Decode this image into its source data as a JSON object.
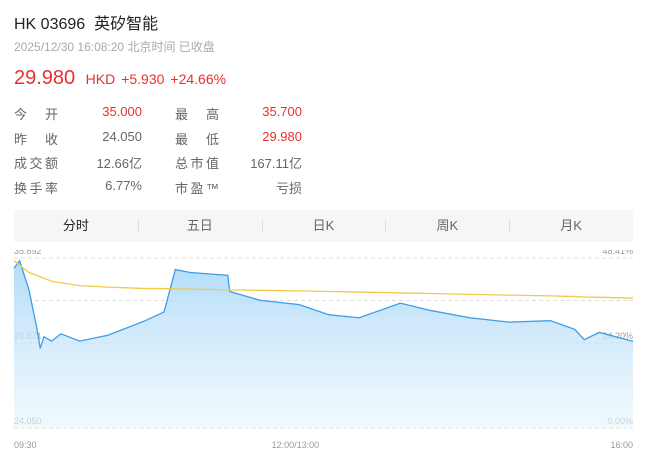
{
  "header": {
    "symbol": "HK 03696",
    "name": "英矽智能",
    "timestamp": "2025/12/30 16:08:20 北京时间 已收盘"
  },
  "quote": {
    "price": "29.980",
    "currency": "HKD",
    "change": "+5.930",
    "change_pct": "+24.66%"
  },
  "stats": {
    "rows": [
      [
        "今开",
        "35.000",
        "最高",
        "35.700"
      ],
      [
        "昨收",
        "24.050",
        "最低",
        "29.980"
      ],
      [
        "成交额",
        "12.66亿",
        "总市值",
        "167.11亿"
      ],
      [
        "换手率",
        "6.77%",
        "市盈™",
        "亏损"
      ]
    ]
  },
  "tabs": [
    "分时",
    "五日",
    "日K",
    "周K",
    "月K"
  ],
  "chart_data": {
    "type": "line",
    "x": [
      0,
      3,
      8,
      12,
      14,
      16,
      20,
      25,
      35,
      50,
      60,
      70,
      80,
      86,
      94,
      114,
      115,
      131,
      152,
      168,
      184,
      206,
      222,
      243,
      264,
      286,
      299,
      304,
      312,
      330
    ],
    "series": [
      {
        "color": "#3d9de6",
        "values": [
          35.0,
          35.5,
          33.5,
          31.0,
          29.5,
          30.3,
          30.0,
          30.5,
          30.0,
          30.4,
          30.9,
          31.4,
          32.0,
          34.9,
          34.7,
          34.5,
          33.4,
          32.8,
          32.5,
          31.8,
          31.6,
          32.6,
          32.1,
          31.6,
          31.3,
          31.4,
          30.8,
          30.1,
          30.6,
          29.98
        ]
      },
      {
        "color": "#f2c94c",
        "values": [
          35.5,
          35.2,
          34.7,
          34.5,
          34.4,
          34.3,
          34.1,
          34.0,
          33.8,
          33.7,
          33.65,
          33.6,
          33.6,
          33.58,
          33.56,
          33.52,
          33.51,
          33.48,
          33.44,
          33.4,
          33.36,
          33.3,
          33.26,
          33.2,
          33.15,
          33.1,
          33.05,
          33.02,
          33.0,
          32.95
        ]
      }
    ],
    "xlim": [
      0,
      330
    ],
    "xticks": [
      {
        "value": 0,
        "label": "09:30"
      },
      {
        "value": 150,
        "label": "12:00/13:00"
      },
      {
        "value": 330,
        "label": "16:00"
      }
    ],
    "ylim": [
      24.05,
      35.692
    ],
    "yticks": [
      35.692,
      29.871,
      {
        "value": 24.05,
        "label": "24.050"
      }
    ],
    "minor_grid": [
      32.781,
      26.961
    ],
    "y2lim": [
      0,
      48.41
    ],
    "y2ticks": [
      {
        "value": 48.41,
        "label": "48.41%"
      },
      {
        "value": 24.2,
        "label": "24.20%"
      },
      {
        "value": 0,
        "label": "0.00%"
      }
    ]
  }
}
